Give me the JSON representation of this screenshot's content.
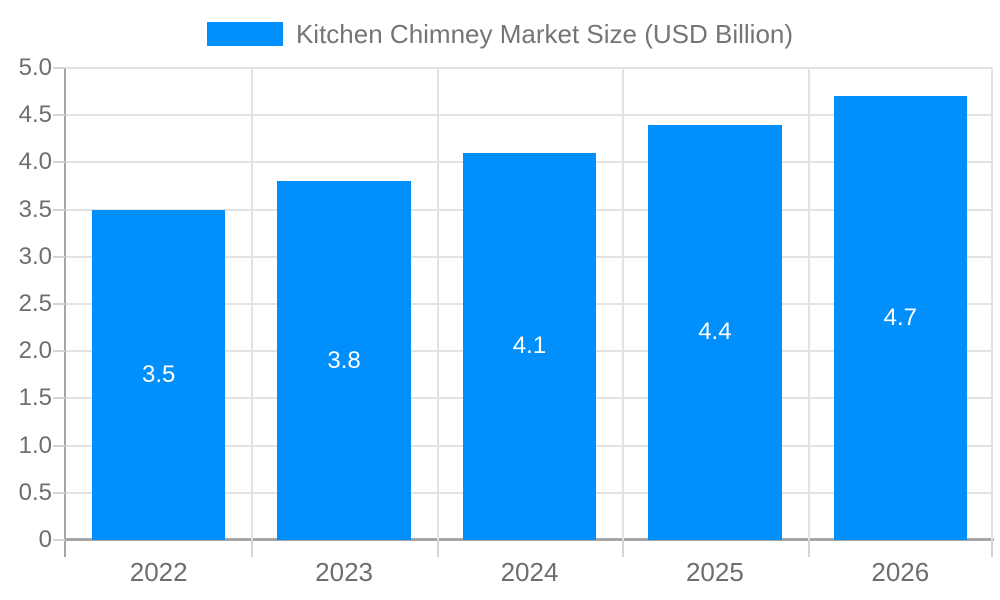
{
  "chart_data": {
    "type": "bar",
    "title": "Kitchen Chimney Market Size (USD Billion)",
    "categories": [
      "2022",
      "2023",
      "2024",
      "2025",
      "2026"
    ],
    "values": [
      3.5,
      3.8,
      4.1,
      4.4,
      4.7
    ],
    "value_labels": [
      "3.5",
      "3.8",
      "4.1",
      "4.4",
      "4.7"
    ],
    "xlabel": "",
    "ylabel": "",
    "ylim": [
      0,
      5
    ],
    "ytick_step": 0.5,
    "ytick_labels": [
      "0",
      "0.5",
      "1.0",
      "1.5",
      "2.0",
      "2.5",
      "3.0",
      "3.5",
      "4.0",
      "4.5",
      "5.0"
    ],
    "grid": true,
    "legend_position": "top",
    "colors": {
      "bar": "#008FFB",
      "bar_label": "#FFFFFF",
      "legend_text": "#757575",
      "axis_text": "#6E6E6E",
      "gridline": "#E3E3E3",
      "axis_line": "#A6A6A6",
      "tick": "#D4D4D4"
    }
  }
}
